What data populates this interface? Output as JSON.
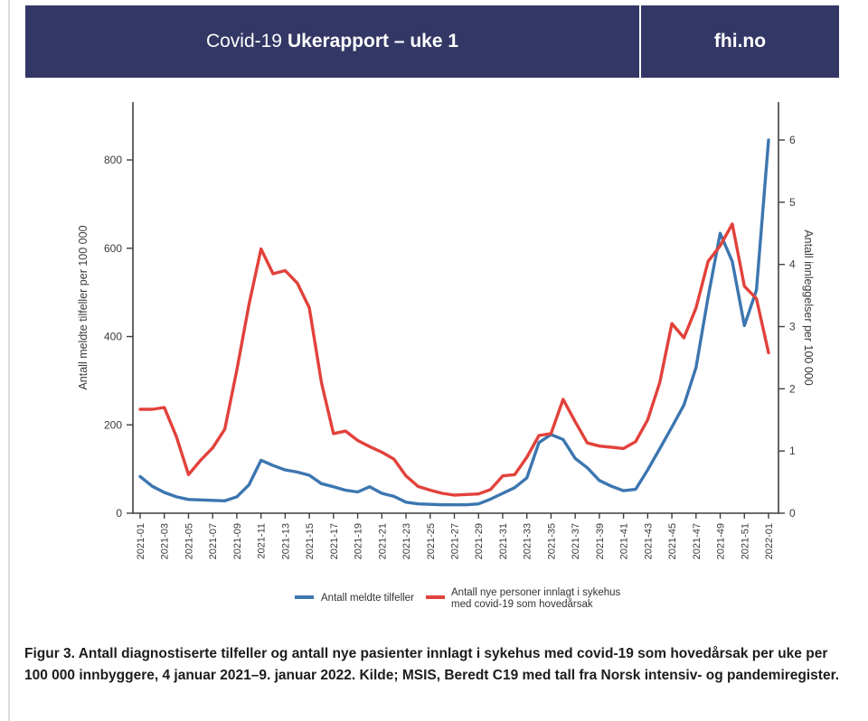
{
  "header": {
    "title_regular": "Covid-19",
    "title_bold": "Ukerapport – uke 1",
    "brand": "fhi.no",
    "bg_color": "#333765"
  },
  "caption": {
    "text": "Figur 3. Antall diagnostiserte tilfeller og antall nye pasienter innlagt i sykehus med covid-19 som hovedårsak per uke per 100 000 innbyggere, 4 januar 2021–9. januar 2022. Kilde; MSIS, Beredt C19 med tall fra Norsk intensiv- og pandemiregister."
  },
  "chart_data": {
    "type": "line",
    "weeks": 53,
    "x_tick_labels": [
      "2021-01",
      "2021-03",
      "2021-05",
      "2021-07",
      "2021-09",
      "2021-11",
      "2021-13",
      "2021-15",
      "2021-17",
      "2021-19",
      "2021-21",
      "2021-23",
      "2021-25",
      "2021-27",
      "2021-29",
      "2021-31",
      "2021-33",
      "2021-35",
      "2021-37",
      "2021-39",
      "2021-41",
      "2021-43",
      "2021-45",
      "2021-47",
      "2021-49",
      "2021-51",
      "2022-01"
    ],
    "left_axis": {
      "label": "Antall meldte tilfeller per 100 000",
      "ticks": [
        0,
        200,
        400,
        600,
        800
      ],
      "max": 931
    },
    "right_axis": {
      "label": "Antall innleggelser per 100 000",
      "ticks": [
        0,
        1,
        2,
        3,
        4,
        5,
        6
      ],
      "max": 6.61
    },
    "series": [
      {
        "name": "Antall meldte tilfeller",
        "axis": "left",
        "color": "#3C76B0",
        "values": [
          83,
          61,
          47,
          37,
          31,
          30,
          29,
          28,
          37,
          64,
          120,
          108,
          98,
          93,
          86,
          67,
          60,
          52,
          48,
          60,
          45,
          38,
          25,
          21,
          20,
          19,
          19,
          19,
          21,
          32,
          45,
          58,
          80,
          160,
          178,
          167,
          124,
          103,
          74,
          61,
          51,
          54,
          98,
          146,
          195,
          245,
          330,
          490,
          634,
          570,
          425,
          505,
          845
        ]
      },
      {
        "name": "Antall nye personer innlagt i sykehus med covid-19 som hovedårsak",
        "axis": "right",
        "color": "#E2413B",
        "values": [
          1.67,
          1.67,
          1.7,
          1.23,
          0.62,
          0.85,
          1.05,
          1.35,
          2.3,
          3.35,
          4.25,
          3.85,
          3.9,
          3.7,
          3.3,
          2.1,
          1.28,
          1.32,
          1.17,
          1.07,
          0.98,
          0.87,
          0.6,
          0.43,
          0.37,
          0.32,
          0.29,
          0.3,
          0.31,
          0.38,
          0.6,
          0.62,
          0.9,
          1.25,
          1.28,
          1.83,
          1.47,
          1.13,
          1.08,
          1.06,
          1.04,
          1.15,
          1.5,
          2.1,
          3.05,
          2.82,
          3.3,
          4.05,
          4.3,
          4.65,
          3.65,
          3.45,
          2.58
        ]
      }
    ],
    "legend": {
      "item1_label": "Antall meldte tilfeller",
      "item2_label_line1": "Antall nye personer innlagt i sykehus",
      "item2_label_line2": "med covid-19 som hovedårsak"
    },
    "axis_color": "#3f3f3f",
    "grid": false,
    "legend_position": "bottom-center"
  }
}
